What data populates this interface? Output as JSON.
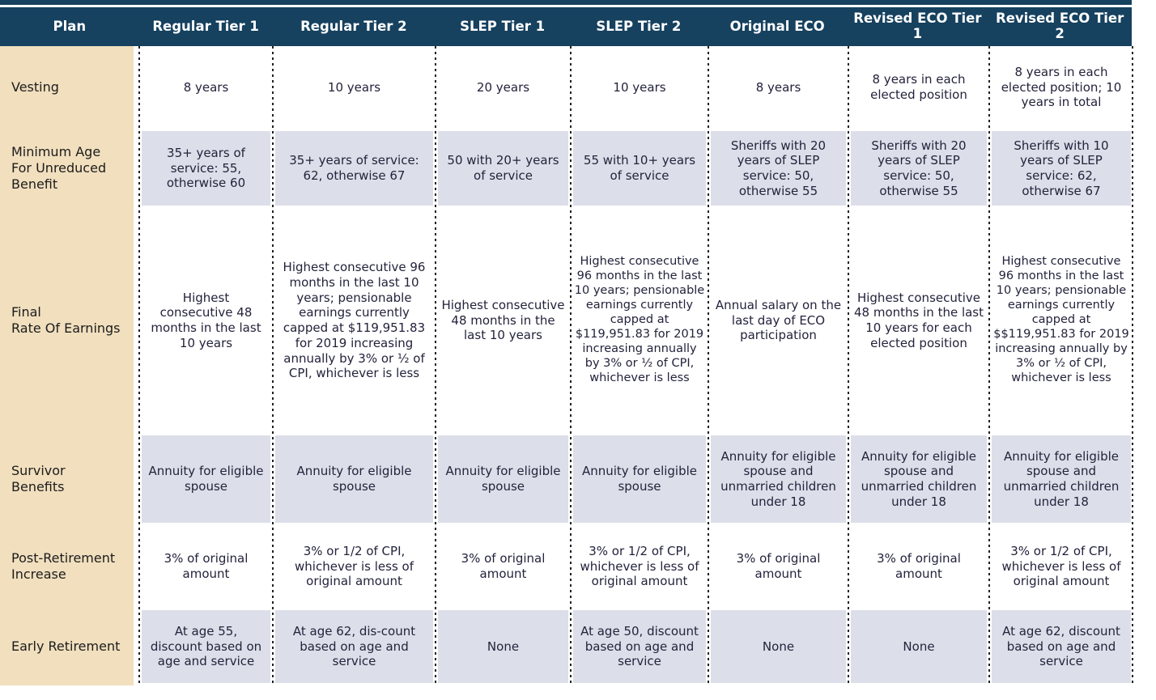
{
  "title": "Pension Plan Comparison Table",
  "colors": {
    "header_bg": "#16415f",
    "header_text": "#ffffff",
    "label_column_bg": "#f1dfbe",
    "alt_row_bg": "#dcdfe9",
    "row_bg": "#ffffff",
    "divider_dotted": "#222222",
    "cell_text": "#23233c"
  },
  "table": {
    "columns": [
      "Plan",
      "Regular Tier 1",
      "Regular Tier 2",
      "SLEP Tier 1",
      "SLEP Tier 2",
      "Original ECO",
      "Revised ECO Tier 1",
      "Revised ECO Tier 2"
    ],
    "rows": [
      {
        "label": "Vesting",
        "cells": [
          "8 years",
          "10 years",
          "20 years",
          "10 years",
          "8 years",
          "8 years in each elected position",
          "8 years in each elected position; 10 years in total"
        ]
      },
      {
        "label": "Minimum Age\nFor Unreduced\nBenefit",
        "cells": [
          "35+ years of service: 55, otherwise 60",
          "35+ years of service: 62, otherwise 67",
          "50 with 20+ years of service",
          "55 with 10+ years of service",
          "Sheriffs with 20 years of SLEP service: 50, otherwise 55",
          "Sheriffs with 20 years of SLEP service: 50, otherwise 55",
          "Sheriffs with 10 years of SLEP service: 62, otherwise 67"
        ]
      },
      {
        "label": "Final\nRate Of Earnings",
        "cells": [
          "Highest consecutive 48 months in the last 10 years",
          "Highest consecutive 96 months in the last 10 years; pensionable earnings currently capped at $119,951.83 for 2019 increasing annually by 3% or ½ of CPI, whichever is less",
          "Highest consecutive 48 months in the last 10 years",
          "Highest consecutive 96 months in the last 10 years; pensionable earnings currently capped at $119,951.83 for 2019 increasing annually by 3% or ½ of CPI, whichever is less",
          "Annual salary on the last day of ECO participation",
          "Highest consecutive 48 months in the last 10 years for each elected position",
          "Highest consecutive 96 months in the last 10 years; pensionable earnings currently capped at $$119,951.83 for 2019 increasing annually by 3% or ½ of CPI, whichever is less"
        ]
      },
      {
        "label": "Survivor\nBenefits",
        "cells": [
          "Annuity for eligible spouse",
          "Annuity for eligible spouse",
          "Annuity for eligible spouse",
          "Annuity for eligible spouse",
          "Annuity for eligible spouse and unmarried children under 18",
          "Annuity for eligible spouse and unmarried children under 18",
          "Annuity for eligible spouse and unmarried children under 18"
        ]
      },
      {
        "label": "Post-Retirement\nIncrease",
        "cells": [
          "3% of original amount",
          "3% or 1/2 of CPI, whichever is less of original amount",
          "3% of original amount",
          "3% or 1/2 of CPI, whichever is less of original amount",
          "3% of original amount",
          "3% of original amount",
          "3% or 1/2 of CPI, whichever is less of original amount"
        ]
      },
      {
        "label": "Early Retirement",
        "cells": [
          "At age 55, discount based on age and service",
          "At age 62,  dis-count based on age and service",
          "None",
          "At age 50, discount based on age and service",
          "None",
          "None",
          "At age 62, discount based on age and service"
        ]
      }
    ]
  }
}
